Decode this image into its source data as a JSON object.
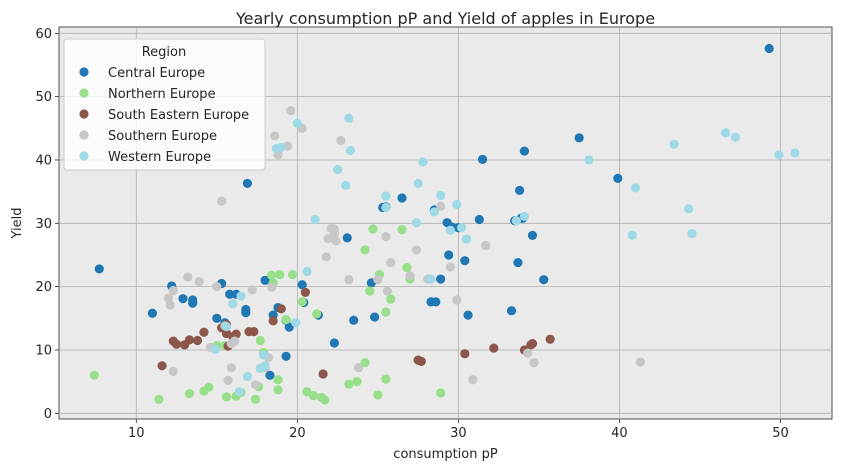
{
  "chart_data": {
    "type": "scatter",
    "title": "Yearly consumption pP and Yield of apples in Europe",
    "xlabel": "consumption pP",
    "ylabel": "Yield",
    "xlim": [
      5.2,
      53.2
    ],
    "ylim": [
      -0.9,
      61.0
    ],
    "xticks": [
      10,
      20,
      30,
      40,
      50
    ],
    "yticks": [
      0,
      10,
      20,
      30,
      40,
      50,
      60
    ],
    "grid": true,
    "legend": {
      "title": "Region",
      "placement": "top-left"
    },
    "series": [
      {
        "name": "Central Europe",
        "color": "#1f77b4",
        "points": [
          [
            7.7,
            22.8
          ],
          [
            11.0,
            15.8
          ],
          [
            12.2,
            20.1
          ],
          [
            12.9,
            18.1
          ],
          [
            13.5,
            17.4
          ],
          [
            13.5,
            17.9
          ],
          [
            15.0,
            15.0
          ],
          [
            15.3,
            20.5
          ],
          [
            15.5,
            14.3
          ],
          [
            15.8,
            18.8
          ],
          [
            16.2,
            18.8
          ],
          [
            16.8,
            16.4
          ],
          [
            16.8,
            15.9
          ],
          [
            16.9,
            36.3
          ],
          [
            18.0,
            21.0
          ],
          [
            18.3,
            6.0
          ],
          [
            18.5,
            15.5
          ],
          [
            18.8,
            16.7
          ],
          [
            19.3,
            9.0
          ],
          [
            19.3,
            14.7
          ],
          [
            19.5,
            13.6
          ],
          [
            20.3,
            20.3
          ],
          [
            20.4,
            17.5
          ],
          [
            21.3,
            15.5
          ],
          [
            22.3,
            11.1
          ],
          [
            23.1,
            27.7
          ],
          [
            23.5,
            14.7
          ],
          [
            24.6,
            20.6
          ],
          [
            24.8,
            15.2
          ],
          [
            25.3,
            32.5
          ],
          [
            25.5,
            32.6
          ],
          [
            26.5,
            34.0
          ],
          [
            28.3,
            17.6
          ],
          [
            28.5,
            32.1
          ],
          [
            28.6,
            17.6
          ],
          [
            28.9,
            21.2
          ],
          [
            29.3,
            30.1
          ],
          [
            29.4,
            25.0
          ],
          [
            29.6,
            29.4
          ],
          [
            30.0,
            29.3
          ],
          [
            30.4,
            24.1
          ],
          [
            30.6,
            15.5
          ],
          [
            31.3,
            30.6
          ],
          [
            31.5,
            40.1
          ],
          [
            33.3,
            16.2
          ],
          [
            33.5,
            30.4
          ],
          [
            33.8,
            35.2
          ],
          [
            33.7,
            23.8
          ],
          [
            33.9,
            30.8
          ],
          [
            34.0,
            30.8
          ],
          [
            34.1,
            41.4
          ],
          [
            34.6,
            28.1
          ],
          [
            35.3,
            21.1
          ],
          [
            37.5,
            43.5
          ],
          [
            39.9,
            37.1
          ],
          [
            49.3,
            57.6
          ]
        ]
      },
      {
        "name": "Northern Europe",
        "color": "#98df8a",
        "points": [
          [
            7.4,
            6.0
          ],
          [
            11.4,
            2.2
          ],
          [
            13.3,
            3.1
          ],
          [
            14.2,
            3.5
          ],
          [
            14.5,
            4.1
          ],
          [
            15.0,
            10.7
          ],
          [
            15.5,
            10.7
          ],
          [
            15.6,
            2.6
          ],
          [
            16.2,
            2.7
          ],
          [
            16.5,
            3.3
          ],
          [
            17.4,
            2.2
          ],
          [
            17.6,
            4.2
          ],
          [
            17.9,
            9.6
          ],
          [
            17.7,
            11.5
          ],
          [
            18.4,
            21.8
          ],
          [
            18.5,
            20.6
          ],
          [
            18.8,
            3.7
          ],
          [
            18.8,
            5.3
          ],
          [
            18.9,
            21.9
          ],
          [
            19.3,
            14.8
          ],
          [
            19.7,
            21.9
          ],
          [
            20.3,
            17.6
          ],
          [
            20.6,
            3.4
          ],
          [
            21.0,
            2.8
          ],
          [
            21.2,
            15.7
          ],
          [
            21.5,
            2.5
          ],
          [
            21.7,
            2.1
          ],
          [
            23.2,
            4.6
          ],
          [
            23.7,
            5.0
          ],
          [
            24.2,
            25.8
          ],
          [
            24.2,
            8.0
          ],
          [
            24.5,
            19.3
          ],
          [
            24.7,
            29.1
          ],
          [
            25.0,
            2.9
          ],
          [
            25.1,
            21.9
          ],
          [
            25.5,
            16.0
          ],
          [
            25.5,
            5.4
          ],
          [
            25.8,
            18.0
          ],
          [
            26.5,
            29.0
          ],
          [
            26.8,
            23.0
          ],
          [
            27.0,
            21.2
          ],
          [
            28.9,
            3.2
          ]
        ]
      },
      {
        "name": "South Eastern Europe",
        "color": "#8c564b",
        "points": [
          [
            11.6,
            7.5
          ],
          [
            12.3,
            11.4
          ],
          [
            12.5,
            10.9
          ],
          [
            13.0,
            10.8
          ],
          [
            13.3,
            11.6
          ],
          [
            13.8,
            11.5
          ],
          [
            14.2,
            12.8
          ],
          [
            15.3,
            13.5
          ],
          [
            15.6,
            14.0
          ],
          [
            15.7,
            10.6
          ],
          [
            15.6,
            12.6
          ],
          [
            16.0,
            12.1
          ],
          [
            16.2,
            12.5
          ],
          [
            17.0,
            12.9
          ],
          [
            17.3,
            12.9
          ],
          [
            18.5,
            14.6
          ],
          [
            19.0,
            16.5
          ],
          [
            20.5,
            19.1
          ],
          [
            21.6,
            6.2
          ],
          [
            27.5,
            8.4
          ],
          [
            27.7,
            8.2
          ],
          [
            30.4,
            9.4
          ],
          [
            32.2,
            10.3
          ],
          [
            34.1,
            10.0
          ],
          [
            34.5,
            10.8
          ],
          [
            34.6,
            11.0
          ],
          [
            35.7,
            11.7
          ]
        ]
      },
      {
        "name": "Southern Europe",
        "color": "#c7c7c7",
        "points": [
          [
            12.0,
            18.2
          ],
          [
            12.1,
            17.1
          ],
          [
            12.3,
            6.6
          ],
          [
            12.3,
            19.4
          ],
          [
            13.2,
            21.5
          ],
          [
            13.9,
            20.8
          ],
          [
            14.6,
            10.4
          ],
          [
            15.0,
            20.0
          ],
          [
            15.3,
            33.5
          ],
          [
            15.5,
            13.8
          ],
          [
            15.7,
            5.2
          ],
          [
            15.9,
            7.2
          ],
          [
            15.9,
            11.0
          ],
          [
            16.1,
            11.4
          ],
          [
            17.2,
            19.5
          ],
          [
            17.4,
            4.5
          ],
          [
            18.0,
            7.2
          ],
          [
            18.2,
            8.8
          ],
          [
            18.4,
            19.9
          ],
          [
            18.6,
            43.8
          ],
          [
            18.8,
            41.5
          ],
          [
            18.8,
            40.8
          ],
          [
            19.4,
            42.2
          ],
          [
            19.6,
            47.8
          ],
          [
            20.3,
            45.0
          ],
          [
            21.9,
            27.6
          ],
          [
            21.8,
            24.7
          ],
          [
            22.1,
            29.2
          ],
          [
            22.3,
            29.1
          ],
          [
            22.3,
            28.3
          ],
          [
            22.4,
            27.2
          ],
          [
            22.7,
            43.1
          ],
          [
            23.2,
            21.1
          ],
          [
            23.8,
            7.2
          ],
          [
            25.0,
            21.1
          ],
          [
            25.5,
            27.9
          ],
          [
            25.6,
            19.3
          ],
          [
            25.8,
            23.8
          ],
          [
            27.0,
            21.7
          ],
          [
            27.4,
            25.8
          ],
          [
            28.1,
            21.2
          ],
          [
            28.9,
            32.7
          ],
          [
            29.5,
            23.1
          ],
          [
            29.9,
            17.9
          ],
          [
            30.9,
            5.3
          ],
          [
            31.7,
            26.5
          ],
          [
            34.3,
            9.5
          ],
          [
            34.7,
            8.0
          ],
          [
            41.3,
            8.1
          ]
        ]
      },
      {
        "name": "Western Europe",
        "color": "#9edae5",
        "points": [
          [
            14.9,
            10.1
          ],
          [
            15.6,
            13.7
          ],
          [
            16.0,
            17.3
          ],
          [
            16.4,
            3.4
          ],
          [
            16.5,
            18.5
          ],
          [
            16.9,
            5.8
          ],
          [
            17.7,
            7.1
          ],
          [
            17.9,
            9.2
          ],
          [
            18.0,
            7.5
          ],
          [
            18.7,
            41.8
          ],
          [
            19.0,
            42.0
          ],
          [
            19.9,
            14.3
          ],
          [
            20.0,
            45.8
          ],
          [
            20.6,
            22.4
          ],
          [
            21.1,
            30.6
          ],
          [
            22.5,
            38.5
          ],
          [
            23.0,
            36.0
          ],
          [
            23.2,
            46.6
          ],
          [
            23.3,
            41.5
          ],
          [
            25.5,
            34.3
          ],
          [
            25.5,
            32.5
          ],
          [
            27.4,
            30.1
          ],
          [
            27.5,
            36.3
          ],
          [
            27.8,
            39.7
          ],
          [
            28.3,
            21.2
          ],
          [
            28.5,
            31.8
          ],
          [
            28.9,
            34.4
          ],
          [
            29.5,
            28.9
          ],
          [
            29.9,
            33.0
          ],
          [
            30.2,
            29.3
          ],
          [
            30.5,
            27.5
          ],
          [
            33.6,
            30.4
          ],
          [
            34.1,
            31.1
          ],
          [
            38.1,
            40.0
          ],
          [
            40.8,
            28.1
          ],
          [
            41.0,
            35.6
          ],
          [
            43.4,
            42.5
          ],
          [
            44.3,
            32.3
          ],
          [
            44.5,
            28.4
          ],
          [
            46.6,
            44.3
          ],
          [
            47.2,
            43.6
          ],
          [
            49.9,
            40.8
          ],
          [
            50.9,
            41.1
          ]
        ]
      }
    ]
  }
}
